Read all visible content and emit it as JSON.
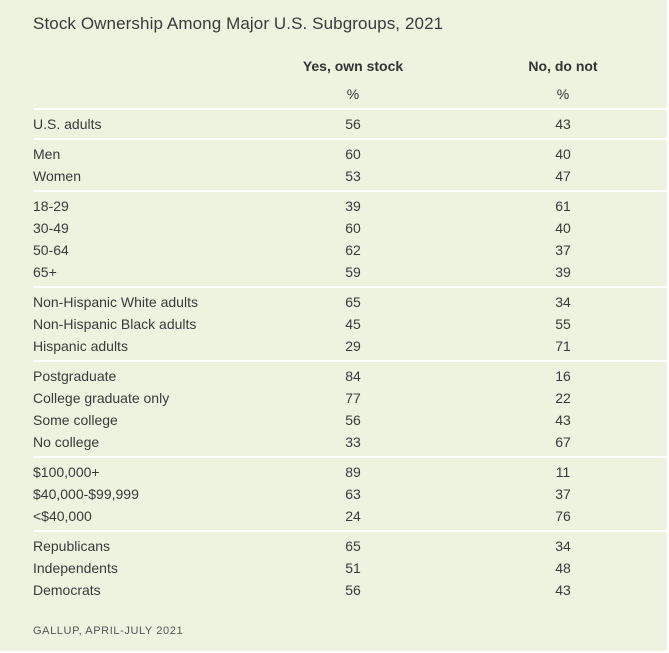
{
  "chart_data": {
    "type": "table",
    "title": "Stock Ownership Among Major U.S. Subgroups, 2021",
    "columns": [
      "Yes, own stock",
      "No, do not"
    ],
    "units": [
      "%",
      "%"
    ],
    "groups": [
      {
        "rows": [
          {
            "label": "U.S. adults",
            "values": [
              56,
              43
            ]
          }
        ]
      },
      {
        "rows": [
          {
            "label": "Men",
            "values": [
              60,
              40
            ]
          },
          {
            "label": "Women",
            "values": [
              53,
              47
            ]
          }
        ]
      },
      {
        "rows": [
          {
            "label": "18-29",
            "values": [
              39,
              61
            ]
          },
          {
            "label": "30-49",
            "values": [
              60,
              40
            ]
          },
          {
            "label": "50-64",
            "values": [
              62,
              37
            ]
          },
          {
            "label": "65+",
            "values": [
              59,
              39
            ]
          }
        ]
      },
      {
        "rows": [
          {
            "label": "Non-Hispanic White adults",
            "values": [
              65,
              34
            ]
          },
          {
            "label": "Non-Hispanic Black adults",
            "values": [
              45,
              55
            ]
          },
          {
            "label": "Hispanic adults",
            "values": [
              29,
              71
            ]
          }
        ]
      },
      {
        "rows": [
          {
            "label": "Postgraduate",
            "values": [
              84,
              16
            ]
          },
          {
            "label": "College graduate only",
            "values": [
              77,
              22
            ]
          },
          {
            "label": "Some college",
            "values": [
              56,
              43
            ]
          },
          {
            "label": "No college",
            "values": [
              33,
              67
            ]
          }
        ]
      },
      {
        "rows": [
          {
            "label": "$100,000+",
            "values": [
              89,
              11
            ]
          },
          {
            "label": "$40,000-$99,999",
            "values": [
              63,
              37
            ]
          },
          {
            "label": "<$40,000",
            "values": [
              24,
              76
            ]
          }
        ]
      },
      {
        "rows": [
          {
            "label": "Republicans",
            "values": [
              65,
              34
            ]
          },
          {
            "label": "Independents",
            "values": [
              51,
              48
            ]
          },
          {
            "label": "Democrats",
            "values": [
              56,
              43
            ]
          }
        ]
      }
    ],
    "source": "GALLUP, APRIL-JULY 2021"
  },
  "colors": {
    "background": "#edf3df",
    "rule": "#ffffff",
    "text": "#3a3a3a"
  }
}
